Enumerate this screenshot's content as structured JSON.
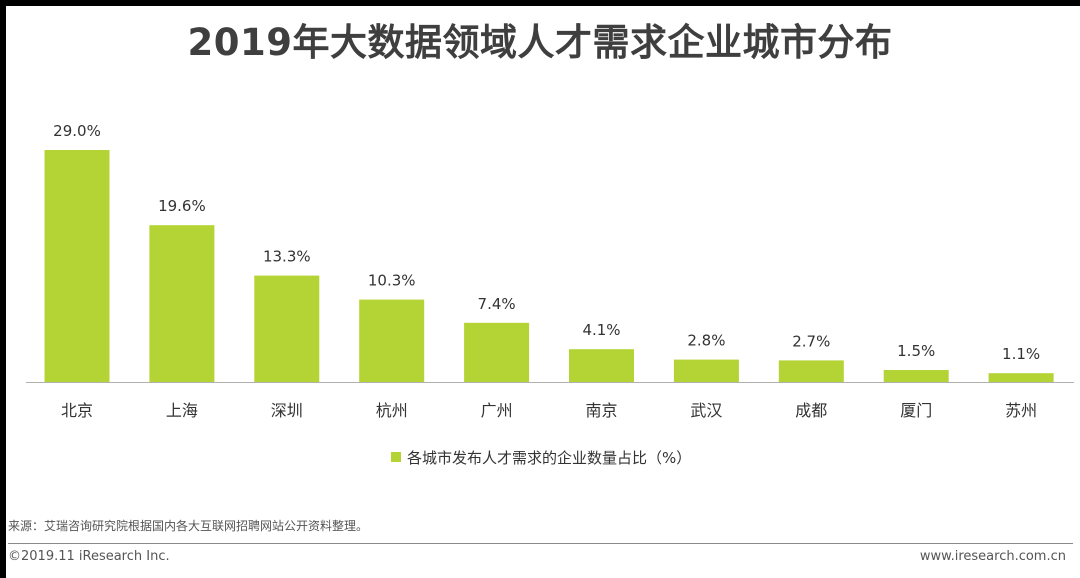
{
  "colors": {
    "bar": "#b4d334",
    "axis": "#b0b0b0",
    "text": "#3a3a3a"
  },
  "chart_data": {
    "type": "bar",
    "title": "2019年大数据领域人才需求企业城市分布",
    "categories": [
      "北京",
      "上海",
      "深圳",
      "杭州",
      "广州",
      "南京",
      "武汉",
      "成都",
      "厦门",
      "苏州"
    ],
    "series": [
      {
        "name": "各城市发布人才需求的企业数量占比（%）",
        "values": [
          29.0,
          19.6,
          13.3,
          10.3,
          7.4,
          4.1,
          2.8,
          2.7,
          1.5,
          1.1
        ]
      }
    ],
    "data_labels": [
      "29.0%",
      "19.6%",
      "13.3%",
      "10.3%",
      "7.4%",
      "4.1%",
      "2.8%",
      "2.7%",
      "1.5%",
      "1.1%"
    ],
    "xlabel": "",
    "ylabel": "",
    "ylim": [
      0,
      29
    ],
    "grid": false,
    "legend_position": "bottom"
  },
  "footer": {
    "source": "来源：艾瑞咨询研究院根据国内各大互联网招聘网站公开资料整理。",
    "copyright": "©2019.11 iResearch Inc.",
    "website": "www.iresearch.com.cn"
  }
}
